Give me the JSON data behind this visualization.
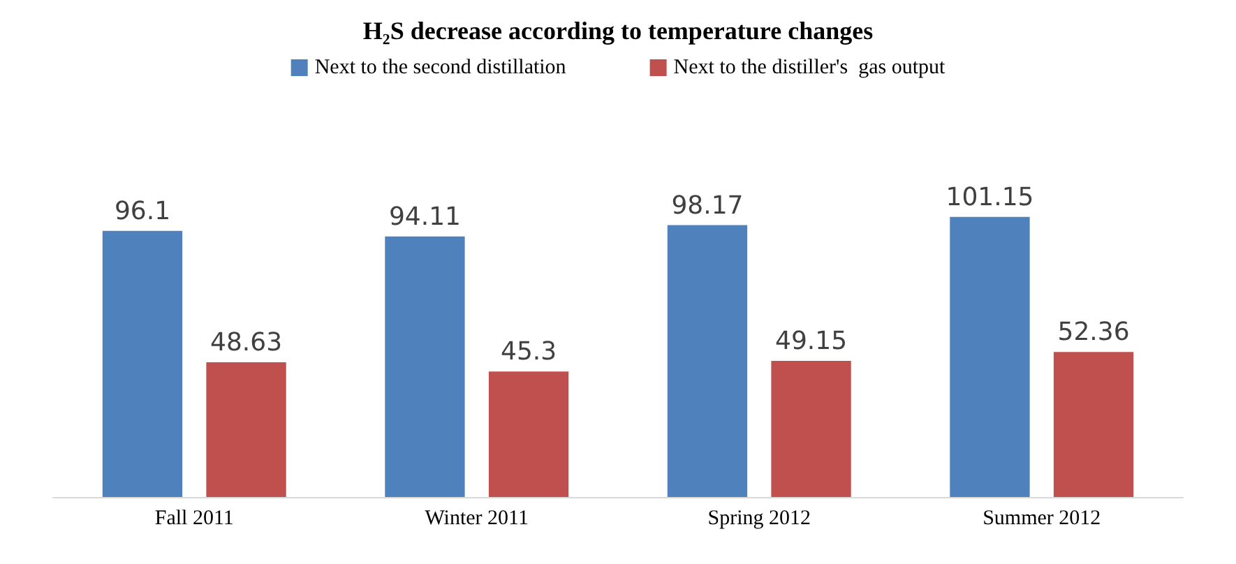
{
  "chart_data": {
    "type": "bar",
    "title": "H₂S decrease according to temperature changes",
    "categories": [
      "Fall 2011",
      "Winter 2011",
      "Spring 2012",
      "Summer 2012"
    ],
    "series": [
      {
        "name": "Next to the second distillation",
        "color": "#4f81bd",
        "values": [
          96.1,
          94.11,
          98.17,
          101.15
        ]
      },
      {
        "name": "Next to the distiller's  gas output",
        "color": "#c0504d",
        "values": [
          48.63,
          45.3,
          49.15,
          52.36
        ]
      }
    ],
    "data_labels": true,
    "legend": "top"
  }
}
